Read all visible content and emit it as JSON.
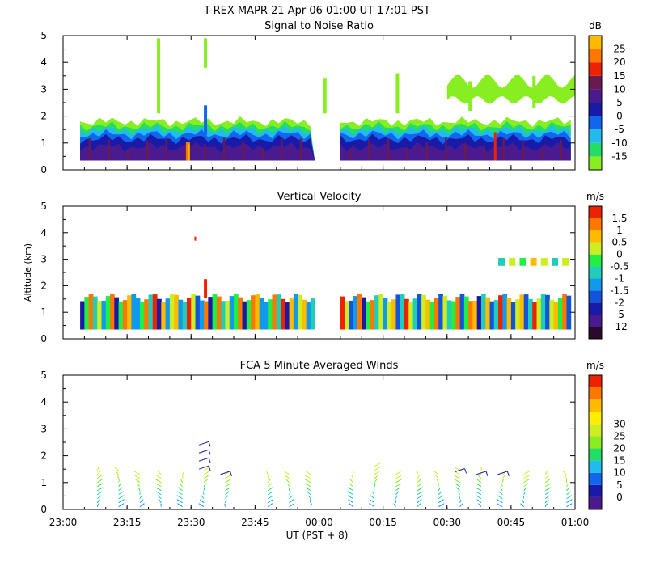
{
  "header": {
    "line1": "T-REX  MAPR 21 Apr 06  01:00 UT  17:01  PST"
  },
  "chart_data": [
    {
      "id": "snr",
      "type": "heatmap",
      "title": "Signal to Noise Ratio",
      "ylabel": "",
      "ylim": [
        0,
        5
      ],
      "yticks": [
        "0",
        "1",
        "2",
        "3",
        "4",
        "5"
      ],
      "x_range_minutes": [
        0,
        120
      ],
      "data_gaps_minutes": [
        [
          -10,
          4
        ],
        [
          59,
          65
        ],
        [
          119,
          130
        ]
      ],
      "cbar_unit": "dB",
      "cbar_labels": [
        "-15",
        "-10",
        "-5",
        "0",
        "5",
        "10",
        "15",
        "20",
        "25"
      ],
      "cbar_colors": [
        "#88ee22",
        "#22dd66",
        "#22bbee",
        "#1166ee",
        "#1a1aa8",
        "#4a1a8e",
        "#6a1a52",
        "#ee2200",
        "#ff7700",
        "#ffbb00"
      ],
      "layers": [
        {
          "top_km": 1.8,
          "color": "#88ee22"
        },
        {
          "top_km": 1.62,
          "color": "#22dd66"
        },
        {
          "top_km": 1.48,
          "color": "#22bbee"
        },
        {
          "top_km": 1.32,
          "color": "#1166ee"
        },
        {
          "top_km": 1.15,
          "color": "#1a1aa8"
        },
        {
          "top_km": 0.85,
          "color": "#4a1a8e"
        }
      ],
      "upper_echoes": [
        {
          "t": 22,
          "z0": 2.1,
          "z1": 4.9
        },
        {
          "t": 33,
          "z0": 3.8,
          "z1": 4.9
        },
        {
          "t": 61,
          "z0": 2.1,
          "z1": 3.4
        },
        {
          "t": 78,
          "z0": 2.1,
          "z1": 3.6
        },
        {
          "t": 95,
          "z0": 2.2,
          "z1": 3.3
        },
        {
          "t": 110,
          "z0": 2.3,
          "z1": 3.5
        }
      ],
      "layer_cloud": {
        "t0": 90,
        "t1": 120,
        "z0": 2.5,
        "z1": 3.8
      }
    },
    {
      "id": "vv",
      "type": "heatmap",
      "title": "Vertical Velocity",
      "ylabel": "Altitude (km)",
      "ylim": [
        0,
        5
      ],
      "yticks": [
        "0",
        "1",
        "2",
        "3",
        "4",
        "5"
      ],
      "x_range_minutes": [
        0,
        120
      ],
      "data_gaps_minutes": [
        [
          -10,
          4
        ],
        [
          59,
          65
        ],
        [
          119,
          130
        ]
      ],
      "cbar_unit": "m/s",
      "cbar_labels": [
        "-12",
        "-5",
        "-2",
        "-1.5",
        "-1",
        "-0.5",
        "0",
        "0.5",
        "1",
        "1.5"
      ],
      "cbar_colors": [
        "#2a0a2a",
        "#4a1a8e",
        "#1a1aa8",
        "#1155dd",
        "#1199ee",
        "#22ccbb",
        "#22ee44",
        "#ccee22",
        "#ffbb00",
        "#ff7700",
        "#ee2200"
      ],
      "column_velocities": [
        -2,
        -0.5,
        1.5,
        -1,
        0.5,
        -1.5,
        0,
        1,
        -2,
        -0.5,
        1.5,
        0.5,
        -1,
        -1.5,
        0,
        1,
        -0.5,
        1.5,
        -2,
        0.5,
        -1,
        0,
        1,
        -1.5,
        -0.5,
        1.5,
        0.5,
        -2,
        -1,
        1
      ],
      "upper_echo_velocities": [
        -0.5,
        0.5,
        0,
        1,
        0.5,
        -0.5,
        0.5
      ]
    },
    {
      "id": "winds",
      "type": "scatter",
      "title": "FCA 5 Minute Averaged Winds",
      "ylabel": "",
      "ylim": [
        0,
        5
      ],
      "yticks": [
        "0",
        "1",
        "2",
        "3",
        "4",
        "5"
      ],
      "cbar_unit": "m/s",
      "cbar_labels": [
        "0",
        "5",
        "10",
        "15",
        "20",
        "25",
        "30"
      ],
      "cbar_colors": [
        "#4a1a8e",
        "#1a1aa8",
        "#1166ee",
        "#22bbee",
        "#22dd66",
        "#88ee22",
        "#ccee22",
        "#ffee00",
        "#ffbb00",
        "#ff7700",
        "#ee2200"
      ],
      "profile_times_minutes": [
        8,
        13,
        18,
        23,
        28,
        33,
        38,
        48,
        53,
        58,
        68,
        73,
        78,
        83,
        88,
        93,
        98,
        103,
        108,
        113,
        118
      ],
      "profile_top_km": [
        1.5,
        1.5,
        1.3,
        1.4,
        1.4,
        1.5,
        1.4,
        1.4,
        1.4,
        1.4,
        1.4,
        1.6,
        1.4,
        1.4,
        1.4,
        1.5,
        1.5,
        1.4,
        1.4,
        1.4,
        1.3
      ],
      "high_barbs": [
        {
          "t": 33,
          "z": 1.5
        },
        {
          "t": 33,
          "z": 1.8
        },
        {
          "t": 33,
          "z": 2.1
        },
        {
          "t": 33,
          "z": 2.4
        },
        {
          "t": 38,
          "z": 1.3
        },
        {
          "t": 93,
          "z": 1.4
        },
        {
          "t": 98,
          "z": 1.3
        },
        {
          "t": 103,
          "z": 1.3
        }
      ]
    }
  ],
  "x_axis": {
    "ticks": [
      "23:00",
      "23:15",
      "23:30",
      "23:45",
      "00:00",
      "00:15",
      "00:30",
      "00:45",
      "01:00"
    ],
    "label": "UT  (PST + 8)"
  }
}
